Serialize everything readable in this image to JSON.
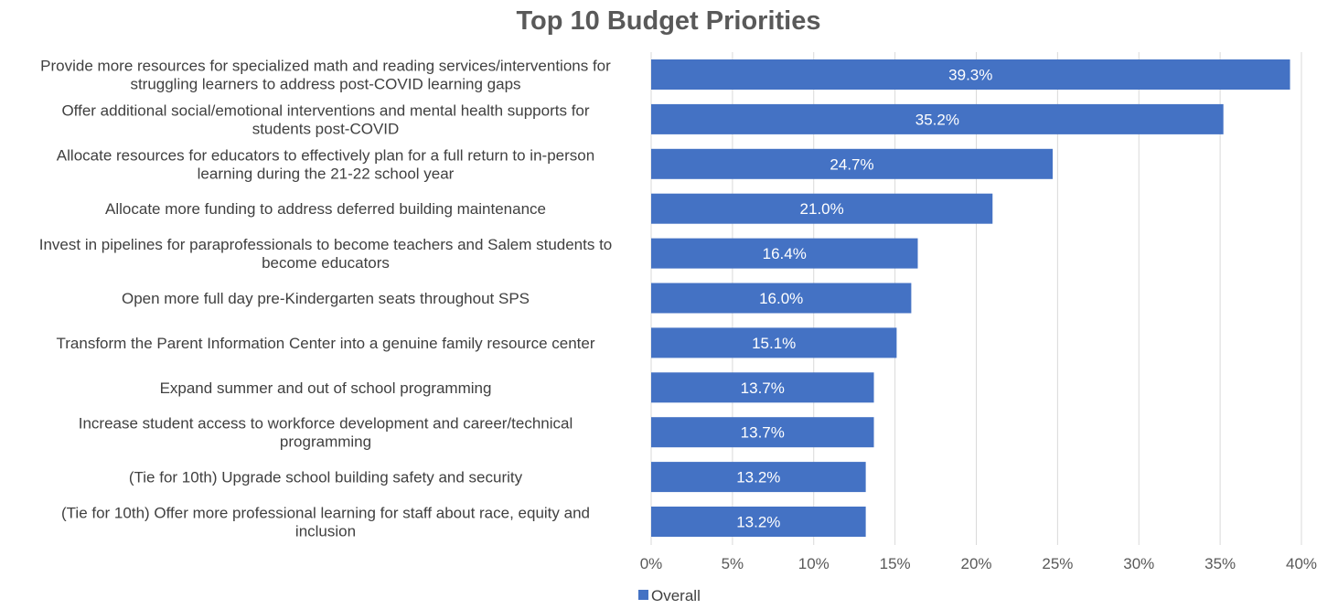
{
  "chart_data": {
    "type": "bar",
    "orientation": "horizontal",
    "title": "Top 10 Budget Priorities",
    "categories": [
      [
        "Provide more resources for specialized math and reading services/interventions for",
        "struggling learners to address post-COVID learning gaps"
      ],
      [
        "Offer additional social/emotional interventions and mental health supports for",
        "students post-COVID"
      ],
      [
        "Allocate resources for educators to effectively plan for a full return to in-person",
        "learning during the 21-22 school year"
      ],
      [
        "Allocate more funding to address deferred building maintenance"
      ],
      [
        "Invest in pipelines for paraprofessionals to become teachers and Salem students to",
        "become educators"
      ],
      [
        "Open more full day pre-Kindergarten seats throughout SPS"
      ],
      [
        "Transform the Parent Information Center into a genuine family resource center"
      ],
      [
        "Expand summer and out of school programming"
      ],
      [
        "Increase student access to workforce development and career/technical",
        "programming"
      ],
      [
        "(Tie for 10th) Upgrade school building safety and security"
      ],
      [
        "(Tie for 10th) Offer more professional learning for staff about race, equity and",
        "inclusion"
      ]
    ],
    "series": [
      {
        "name": "Overall",
        "color": "#4472c4",
        "values": [
          39.3,
          35.2,
          24.7,
          21.0,
          16.4,
          16.0,
          15.1,
          13.7,
          13.7,
          13.2,
          13.2
        ],
        "labels": [
          "39.3%",
          "35.2%",
          "24.7%",
          "21.0%",
          "16.4%",
          "16.0%",
          "15.1%",
          "13.7%",
          "13.7%",
          "13.2%",
          "13.2%"
        ]
      }
    ],
    "xlim": [
      0,
      40
    ],
    "xticks": [
      0,
      5,
      10,
      15,
      20,
      25,
      30,
      35,
      40
    ],
    "xtick_labels": [
      "0%",
      "5%",
      "10%",
      "15%",
      "20%",
      "25%",
      "30%",
      "35%",
      "40%"
    ],
    "grid": true,
    "legend_position": "bottom-left"
  }
}
